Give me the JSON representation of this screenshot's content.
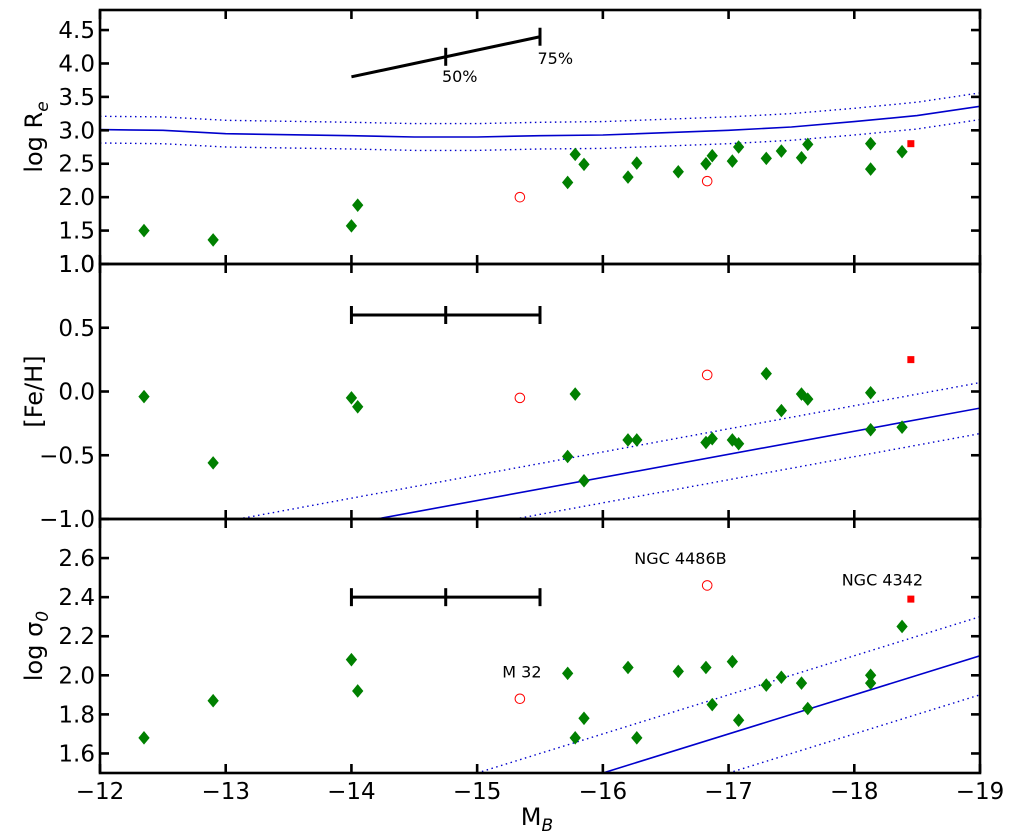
{
  "chart_data": {
    "type": "scatter",
    "x": {
      "label_main": "M",
      "label_sub": "B",
      "range": [
        -12,
        -19
      ],
      "ticks": [
        -12,
        -13,
        -14,
        -15,
        -16,
        -17,
        -18,
        -19
      ],
      "tick_labels": [
        "−12",
        "−13",
        "−14",
        "−15",
        "−16",
        "−17",
        "−18",
        "−19"
      ]
    },
    "panels": [
      {
        "id": "re",
        "ylabel_main": "log R",
        "ylabel_sub": "e",
        "ylim": [
          1.0,
          4.8
        ],
        "ticks": [
          1.0,
          1.5,
          2.0,
          2.5,
          3.0,
          3.5,
          4.0,
          4.5
        ],
        "tick_labels": [
          "1.0",
          "1.5",
          "2.0",
          "2.5",
          "3.0",
          "3.5",
          "4.0",
          "4.5"
        ],
        "green_points": [
          [
            -12.35,
            1.5
          ],
          [
            -12.9,
            1.36
          ],
          [
            -14.0,
            1.57
          ],
          [
            -14.05,
            1.88
          ],
          [
            -15.72,
            2.22
          ],
          [
            -15.78,
            2.64
          ],
          [
            -15.85,
            2.49
          ],
          [
            -16.2,
            2.3
          ],
          [
            -16.27,
            2.51
          ],
          [
            -16.6,
            2.38
          ],
          [
            -16.82,
            2.5
          ],
          [
            -16.87,
            2.62
          ],
          [
            -17.03,
            2.54
          ],
          [
            -17.08,
            2.75
          ],
          [
            -17.3,
            2.58
          ],
          [
            -17.42,
            2.69
          ],
          [
            -17.58,
            2.59
          ],
          [
            -17.63,
            2.79
          ],
          [
            -18.13,
            2.8
          ],
          [
            -18.13,
            2.42
          ],
          [
            -18.38,
            2.68
          ]
        ],
        "open_points": [
          [
            -15.34,
            2.0
          ],
          [
            -16.83,
            2.24
          ]
        ],
        "square_points": [
          [
            -18.45,
            2.8
          ]
        ],
        "fit": [
          [
            -12.0,
            3.01
          ],
          [
            -12.5,
            3.0
          ],
          [
            -13.0,
            2.95
          ],
          [
            -14.0,
            2.92
          ],
          [
            -14.5,
            2.9
          ],
          [
            -15.0,
            2.9
          ],
          [
            -15.5,
            2.92
          ],
          [
            -16.0,
            2.93
          ],
          [
            -17.0,
            3.0
          ],
          [
            -17.5,
            3.05
          ],
          [
            -18.0,
            3.13
          ],
          [
            -18.5,
            3.22
          ],
          [
            -19.0,
            3.36
          ]
        ],
        "fit_upper": [
          [
            -12.0,
            3.21
          ],
          [
            -12.5,
            3.2
          ],
          [
            -13.0,
            3.15
          ],
          [
            -14.0,
            3.12
          ],
          [
            -14.5,
            3.1
          ],
          [
            -15.0,
            3.1
          ],
          [
            -15.5,
            3.12
          ],
          [
            -16.0,
            3.13
          ],
          [
            -17.0,
            3.2
          ],
          [
            -17.5,
            3.25
          ],
          [
            -18.0,
            3.33
          ],
          [
            -18.5,
            3.42
          ],
          [
            -19.0,
            3.56
          ]
        ],
        "fit_lower": [
          [
            -12.0,
            2.81
          ],
          [
            -12.5,
            2.8
          ],
          [
            -13.0,
            2.75
          ],
          [
            -14.0,
            2.72
          ],
          [
            -14.5,
            2.7
          ],
          [
            -15.0,
            2.7
          ],
          [
            -15.5,
            2.72
          ],
          [
            -16.0,
            2.73
          ],
          [
            -17.0,
            2.8
          ],
          [
            -17.5,
            2.85
          ],
          [
            -18.0,
            2.93
          ],
          [
            -18.5,
            3.02
          ],
          [
            -19.0,
            3.16
          ]
        ],
        "errorbar": {
          "x0": -14.0,
          "y0": 3.8,
          "x1": -15.5,
          "y1": 4.4,
          "mid_x": -14.75,
          "mid_y": 4.1
        },
        "errorbar_labels": [
          {
            "text": "50%",
            "x": -14.72,
            "y": 3.72
          },
          {
            "text": "75%",
            "x": -15.48,
            "y": 3.99
          }
        ],
        "annotations": []
      },
      {
        "id": "feh",
        "ylabel_main": "[Fe/H]",
        "ylabel_sub": "",
        "ylim": [
          -1.0,
          1.0
        ],
        "ticks": [
          -1.0,
          -0.5,
          0.0,
          0.5
        ],
        "tick_labels": [
          "−1.0",
          "−0.5",
          "0.0",
          "0.5"
        ],
        "green_points": [
          [
            -12.35,
            -0.04
          ],
          [
            -12.9,
            -0.56
          ],
          [
            -14.0,
            -0.05
          ],
          [
            -14.05,
            -0.12
          ],
          [
            -15.72,
            -0.51
          ],
          [
            -15.78,
            -0.02
          ],
          [
            -15.85,
            -0.7
          ],
          [
            -16.2,
            -0.38
          ],
          [
            -16.27,
            -0.38
          ],
          [
            -16.82,
            -0.4
          ],
          [
            -16.87,
            -0.37
          ],
          [
            -17.03,
            -0.38
          ],
          [
            -17.08,
            -0.41
          ],
          [
            -17.3,
            0.14
          ],
          [
            -17.42,
            -0.15
          ],
          [
            -17.58,
            -0.02
          ],
          [
            -17.63,
            -0.06
          ],
          [
            -18.13,
            -0.01
          ],
          [
            -18.13,
            -0.3
          ],
          [
            -18.38,
            -0.28
          ]
        ],
        "open_points": [
          [
            -15.34,
            -0.05
          ],
          [
            -16.83,
            0.13
          ]
        ],
        "square_points": [
          [
            -18.45,
            0.25
          ]
        ],
        "fit": [
          [
            -14.2,
            -1.0
          ],
          [
            -19.0,
            -0.13
          ]
        ],
        "fit_upper": [
          [
            -13.1,
            -1.0
          ],
          [
            -19.0,
            0.07
          ]
        ],
        "fit_lower": [
          [
            -15.3,
            -1.0
          ],
          [
            -19.0,
            -0.33
          ]
        ],
        "errorbar": {
          "x0": -14.0,
          "y0": 0.6,
          "x1": -15.5,
          "y1": 0.6,
          "mid_x": -14.75,
          "mid_y": 0.6
        },
        "errorbar_labels": [],
        "annotations": []
      },
      {
        "id": "sigma",
        "ylabel_main": "log σ",
        "ylabel_sub": "0",
        "ylim": [
          1.5,
          2.8
        ],
        "ticks": [
          1.6,
          1.8,
          2.0,
          2.2,
          2.4,
          2.6
        ],
        "tick_labels": [
          "1.6",
          "1.8",
          "2.0",
          "2.2",
          "2.4",
          "2.6"
        ],
        "green_points": [
          [
            -12.35,
            1.68
          ],
          [
            -12.9,
            1.87
          ],
          [
            -14.0,
            2.08
          ],
          [
            -14.05,
            1.92
          ],
          [
            -15.72,
            2.01
          ],
          [
            -15.78,
            1.68
          ],
          [
            -15.85,
            1.78
          ],
          [
            -16.2,
            2.04
          ],
          [
            -16.27,
            1.68
          ],
          [
            -16.6,
            2.02
          ],
          [
            -16.82,
            2.04
          ],
          [
            -16.87,
            1.85
          ],
          [
            -17.03,
            2.07
          ],
          [
            -17.08,
            1.77
          ],
          [
            -17.3,
            1.95
          ],
          [
            -17.42,
            1.99
          ],
          [
            -17.58,
            1.96
          ],
          [
            -17.63,
            1.83
          ],
          [
            -18.13,
            2.0
          ],
          [
            -18.13,
            1.96
          ],
          [
            -18.38,
            2.25
          ]
        ],
        "open_points": [
          [
            -15.34,
            1.88
          ],
          [
            -16.83,
            2.46
          ]
        ],
        "square_points": [
          [
            -18.45,
            2.39
          ]
        ],
        "fit": [
          [
            -16.0,
            1.5
          ],
          [
            -19.0,
            2.1
          ]
        ],
        "fit_upper": [
          [
            -15.0,
            1.5
          ],
          [
            -19.0,
            2.3
          ]
        ],
        "fit_lower": [
          [
            -17.0,
            1.5
          ],
          [
            -19.0,
            1.9
          ]
        ],
        "errorbar": {
          "x0": -14.0,
          "y0": 2.4,
          "x1": -15.5,
          "y1": 2.4,
          "mid_x": -14.75,
          "mid_y": 2.4
        },
        "errorbar_labels": [],
        "annotations": [
          {
            "text": "NGC 4486B",
            "x": -16.25,
            "y": 2.57
          },
          {
            "text": "NGC 4342",
            "x": -17.9,
            "y": 2.46
          },
          {
            "text": "M 32",
            "x": -15.2,
            "y": 1.99
          }
        ]
      }
    ],
    "colors": {
      "green": "#008000",
      "red": "#ff0000",
      "fit": "#0000cc",
      "frame": "#000000"
    }
  }
}
